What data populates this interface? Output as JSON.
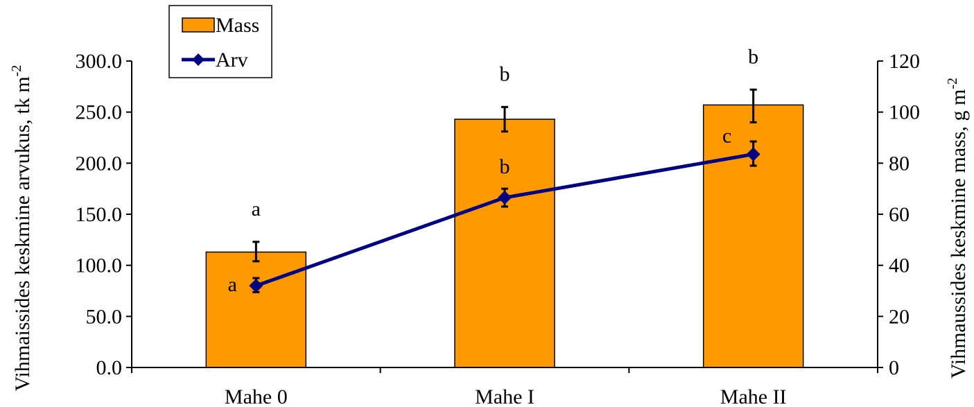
{
  "chart_data": {
    "type": "bar+line",
    "categories": [
      "Mahe 0",
      "Mahe I",
      "Mahe II"
    ],
    "bar_series": {
      "name": "Mass",
      "axis": "left",
      "values": [
        113,
        243,
        257
      ],
      "err_low": [
        104,
        231,
        240
      ],
      "err_high": [
        123,
        255,
        272
      ],
      "sig_letters": [
        "a",
        "b",
        "b"
      ],
      "color": "#FF9900"
    },
    "line_series": {
      "name": "Arv",
      "axis": "right",
      "values": [
        32,
        66.5,
        83.5
      ],
      "err_low": [
        29.5,
        63,
        79
      ],
      "err_high": [
        35,
        70,
        88.5
      ],
      "sig_letters": [
        "a",
        "b",
        "c"
      ],
      "color": "#000080"
    },
    "left_axis": {
      "title_main": "Vihmaissides keskmine arvukus, tk m",
      "title_sup": "-2",
      "min": 0,
      "max": 300,
      "step": 50,
      "tick_labels": [
        "0.0",
        "50.0",
        "100.0",
        "150.0",
        "200.0",
        "250.0",
        "300.0"
      ]
    },
    "right_axis": {
      "title_main": "Vihmaussides keskmine mass, g m",
      "title_sup": "-2",
      "min": 0,
      "max": 120,
      "step": 20,
      "tick_labels": [
        "0",
        "20",
        "40",
        "60",
        "80",
        "100",
        "120"
      ]
    },
    "legend": {
      "position": "top-left",
      "items": [
        "Mass",
        "Arv"
      ]
    },
    "grid": false
  }
}
